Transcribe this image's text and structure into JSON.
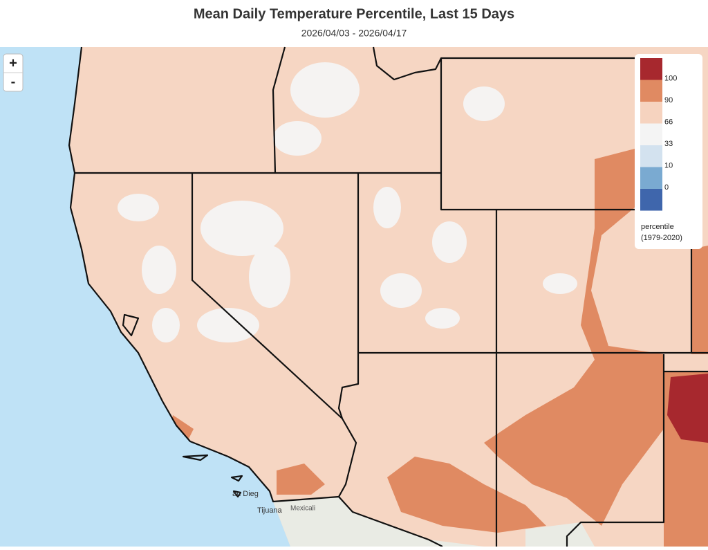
{
  "header": {
    "title": "Mean Daily Temperature Percentile, Last 15 Days",
    "subtitle": "2026/04/03 - 2026/04/17"
  },
  "zoom": {
    "in": "+",
    "out": "-"
  },
  "legend": {
    "items": [
      {
        "label": "100",
        "color": "#a7282e"
      },
      {
        "label": "90",
        "color": "#e08a62"
      },
      {
        "label": "66",
        "color": "#f6d3bf"
      },
      {
        "label": "33",
        "color": "#f4f4f4"
      },
      {
        "label": "10",
        "color": "#d3e2ef"
      },
      {
        "label": "0",
        "color": "#7aaad1"
      }
    ],
    "bottom_color": "#3f66ac",
    "title": "percentile",
    "subtitle": "(1979-2020)"
  },
  "places": [
    "an Dieg",
    "Tijuana",
    "Mexicali"
  ]
}
